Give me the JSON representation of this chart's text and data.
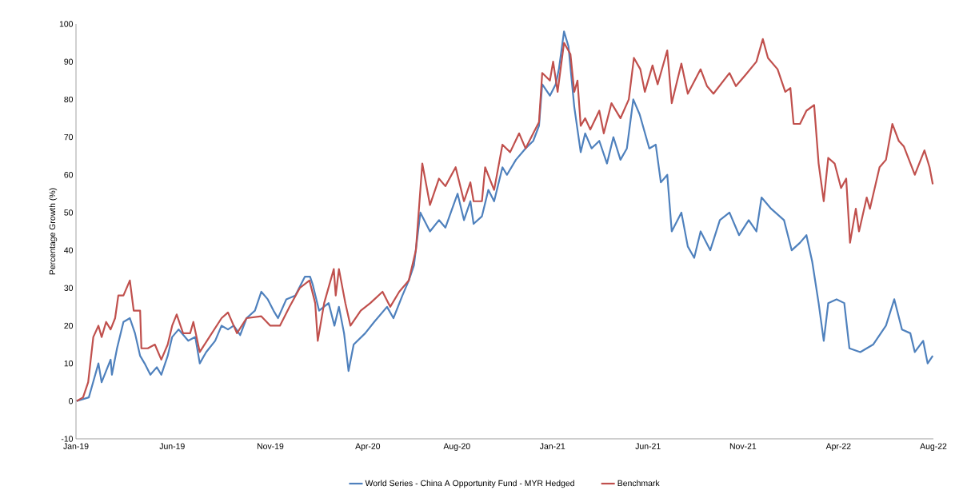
{
  "chart_data": {
    "type": "line",
    "ylabel": "Percentage Growth (%)",
    "xlim": [
      "2019-01-02",
      "2022-08-31"
    ],
    "xticks": [
      {
        "value": "2019-01-02",
        "label": "Jan-19"
      },
      {
        "value": "2019-06-01",
        "label": "Jun-19"
      },
      {
        "value": "2019-11-01",
        "label": "Nov-19"
      },
      {
        "value": "2020-04-01",
        "label": "Apr-20"
      },
      {
        "value": "2020-08-18",
        "label": "Aug-20"
      },
      {
        "value": "2021-01-14",
        "label": "Jan-21"
      },
      {
        "value": "2021-06-12",
        "label": "Jun-21"
      },
      {
        "value": "2021-11-07",
        "label": "Nov-21"
      },
      {
        "value": "2022-04-05",
        "label": "Apr-22"
      },
      {
        "value": "2022-08-31",
        "label": "Aug-22"
      }
    ],
    "ylim": [
      -10,
      100
    ],
    "yticks": [
      -10,
      0,
      10,
      20,
      30,
      40,
      50,
      60,
      70,
      80,
      90,
      100
    ],
    "grid": false,
    "legend": "bottom",
    "line_style": "solid",
    "series": [
      {
        "name": "World Series - China A Opportunity Fund - MYR Hedged",
        "color": "#4f81bd",
        "x": [
          "2019-01-03",
          "2019-01-22",
          "2019-01-27",
          "2019-02-06",
          "2019-02-11",
          "2019-02-25",
          "2019-02-27",
          "2019-03-07",
          "2019-03-17",
          "2019-03-27",
          "2019-04-04",
          "2019-04-12",
          "2019-04-19",
          "2019-04-28",
          "2019-05-08",
          "2019-05-15",
          "2019-05-25",
          "2019-06-01",
          "2019-06-11",
          "2019-06-26",
          "2019-07-07",
          "2019-07-14",
          "2019-07-24",
          "2019-08-07",
          "2019-08-17",
          "2019-08-27",
          "2019-09-05",
          "2019-09-15",
          "2019-09-25",
          "2019-10-08",
          "2019-10-18",
          "2019-10-28",
          "2019-11-06",
          "2019-11-13",
          "2019-11-26",
          "2019-12-10",
          "2019-12-25",
          "2020-01-02",
          "2020-01-06",
          "2020-01-16",
          "2020-01-31",
          "2020-02-09",
          "2020-02-16",
          "2020-02-24",
          "2020-03-02",
          "2020-03-10",
          "2020-03-28",
          "2020-04-11",
          "2020-05-01",
          "2020-05-11",
          "2020-05-25",
          "2020-06-04",
          "2020-06-12",
          "2020-06-22",
          "2020-07-07",
          "2020-07-21",
          "2020-07-31",
          "2020-08-19",
          "2020-08-29",
          "2020-09-08",
          "2020-09-13",
          "2020-09-26",
          "2020-10-06",
          "2020-10-15",
          "2020-10-28",
          "2020-11-04",
          "2020-11-18",
          "2020-12-03",
          "2020-12-15",
          "2020-12-24",
          "2020-12-29",
          "2021-01-10",
          "2021-01-19",
          "2021-01-24",
          "2021-02-01",
          "2021-02-08",
          "2021-02-17",
          "2021-02-27",
          "2021-03-06",
          "2021-03-16",
          "2021-03-28",
          "2021-04-09",
          "2021-04-19",
          "2021-04-30",
          "2021-05-10",
          "2021-05-20",
          "2021-05-30",
          "2021-06-14",
          "2021-06-24",
          "2021-07-02",
          "2021-07-12",
          "2021-07-19",
          "2021-08-03",
          "2021-08-13",
          "2021-08-23",
          "2021-09-02",
          "2021-09-17",
          "2021-10-02",
          "2021-10-17",
          "2021-11-01",
          "2021-11-16",
          "2021-11-28",
          "2021-12-06",
          "2021-12-21",
          "2022-01-10",
          "2022-01-22",
          "2022-02-04",
          "2022-02-14",
          "2022-02-23",
          "2022-03-05",
          "2022-03-13",
          "2022-03-20",
          "2022-04-02",
          "2022-04-14",
          "2022-04-22",
          "2022-05-09",
          "2022-05-29",
          "2022-06-18",
          "2022-07-01",
          "2022-07-13",
          "2022-07-26",
          "2022-08-02",
          "2022-08-15",
          "2022-08-22",
          "2022-08-30"
        ],
        "values": [
          0,
          1,
          4,
          10,
          5,
          11,
          7,
          14,
          21,
          22,
          18,
          12,
          10,
          7,
          9,
          7,
          12,
          17,
          19,
          16,
          17,
          10,
          13,
          16,
          20,
          19,
          20,
          17.5,
          22,
          24,
          29,
          27,
          24,
          22,
          27,
          28,
          33,
          33,
          31,
          24,
          26,
          20,
          25,
          18,
          8,
          15,
          18,
          21,
          25,
          22,
          28,
          32,
          36,
          50,
          45,
          48,
          46,
          55,
          48,
          53,
          47,
          49,
          56,
          53,
          62,
          60,
          64,
          67,
          69,
          73,
          84,
          81,
          84,
          88,
          98,
          94,
          78,
          66,
          71,
          67,
          69,
          63,
          70,
          64,
          67,
          80,
          76,
          67,
          68,
          58,
          60,
          45,
          50,
          41,
          38,
          45,
          40,
          48,
          50,
          44,
          48,
          45,
          54,
          51,
          48,
          40,
          42,
          44,
          37,
          26,
          16,
          26,
          27,
          26,
          14,
          13,
          15,
          20,
          27,
          19,
          18,
          13,
          16,
          10,
          12
        ]
      },
      {
        "name": "Benchmark",
        "color": "#c0504d",
        "x": [
          "2019-01-03",
          "2019-01-13",
          "2019-01-21",
          "2019-01-29",
          "2019-02-06",
          "2019-02-11",
          "2019-02-18",
          "2019-02-25",
          "2019-03-04",
          "2019-03-09",
          "2019-03-17",
          "2019-03-27",
          "2019-04-02",
          "2019-04-12",
          "2019-04-14",
          "2019-04-24",
          "2019-05-05",
          "2019-05-15",
          "2019-05-25",
          "2019-06-01",
          "2019-06-08",
          "2019-06-18",
          "2019-06-29",
          "2019-07-04",
          "2019-07-14",
          "2019-07-29",
          "2019-08-17",
          "2019-08-27",
          "2019-09-10",
          "2019-09-25",
          "2019-10-18",
          "2019-11-01",
          "2019-11-16",
          "2019-12-01",
          "2019-12-17",
          "2020-01-01",
          "2020-01-10",
          "2020-01-14",
          "2020-01-24",
          "2020-02-08",
          "2020-02-11",
          "2020-02-16",
          "2020-02-26",
          "2020-03-05",
          "2020-03-21",
          "2020-04-05",
          "2020-04-24",
          "2020-05-06",
          "2020-05-20",
          "2020-06-04",
          "2020-06-15",
          "2020-06-25",
          "2020-07-07",
          "2020-07-21",
          "2020-07-31",
          "2020-08-16",
          "2020-08-29",
          "2020-09-08",
          "2020-09-13",
          "2020-09-26",
          "2020-10-01",
          "2020-10-15",
          "2020-10-28",
          "2020-11-09",
          "2020-11-23",
          "2020-12-03",
          "2020-12-15",
          "2020-12-24",
          "2020-12-29",
          "2021-01-10",
          "2021-01-15",
          "2021-01-22",
          "2021-02-01",
          "2021-02-11",
          "2021-02-17",
          "2021-02-22",
          "2021-02-27",
          "2021-03-06",
          "2021-03-14",
          "2021-03-28",
          "2021-04-04",
          "2021-04-16",
          "2021-04-30",
          "2021-05-13",
          "2021-05-21",
          "2021-05-31",
          "2021-06-07",
          "2021-06-19",
          "2021-06-27",
          "2021-07-12",
          "2021-07-19",
          "2021-08-03",
          "2021-08-13",
          "2021-09-02",
          "2021-09-12",
          "2021-09-22",
          "2021-10-17",
          "2021-10-27",
          "2021-11-11",
          "2021-11-28",
          "2021-12-08",
          "2021-12-16",
          "2021-12-31",
          "2022-01-12",
          "2022-01-20",
          "2022-01-25",
          "2022-02-04",
          "2022-02-14",
          "2022-02-26",
          "2022-03-05",
          "2022-03-13",
          "2022-03-20",
          "2022-03-30",
          "2022-04-09",
          "2022-04-17",
          "2022-04-23",
          "2022-05-02",
          "2022-05-07",
          "2022-05-19",
          "2022-05-24",
          "2022-06-08",
          "2022-06-18",
          "2022-06-28",
          "2022-07-08",
          "2022-07-16",
          "2022-08-02",
          "2022-08-17",
          "2022-08-25",
          "2022-08-30"
        ],
        "values": [
          0,
          1,
          5,
          17,
          20,
          17,
          21,
          19,
          22,
          28,
          28,
          32,
          24,
          24,
          14,
          14,
          15,
          11,
          15,
          20,
          23,
          18,
          18,
          21,
          13,
          17,
          22,
          23.5,
          18,
          22,
          22.5,
          20,
          20,
          25,
          30,
          32,
          26,
          16,
          26,
          35,
          28,
          35,
          26,
          20,
          24,
          26,
          29,
          25,
          29,
          32,
          40,
          63,
          52,
          59,
          57,
          62,
          53,
          58,
          53,
          53,
          62,
          56,
          68,
          66,
          71,
          67,
          71,
          74,
          87,
          85,
          90,
          82,
          95,
          92,
          82,
          85,
          73,
          75,
          72,
          77,
          71,
          79,
          75,
          80,
          91,
          88,
          82,
          89,
          84,
          93,
          79,
          89.5,
          81.5,
          88,
          83.5,
          81.5,
          87,
          83.5,
          86.5,
          90,
          96,
          91,
          88,
          82,
          83,
          73.5,
          73.5,
          77,
          78.5,
          63,
          53,
          64.5,
          63,
          56.5,
          59,
          42,
          51,
          45,
          54,
          51,
          62,
          64,
          73.5,
          69,
          67.5,
          60,
          66.5,
          62,
          57.5
        ]
      }
    ]
  }
}
